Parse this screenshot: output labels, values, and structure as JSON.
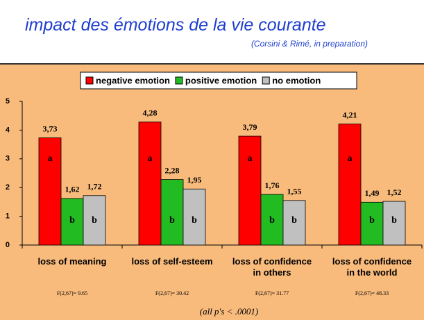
{
  "title": "impact des émotions de la vie courante",
  "subtitle": "(Corsini & Rimé, in preparation)",
  "chart_data": {
    "type": "bar",
    "categories": [
      "loss of meaning",
      "loss of self-esteem",
      "loss of confidence\nin others",
      "loss of confidence\nin the world"
    ],
    "series": [
      {
        "name": "negative emotion",
        "color": "#ff0000",
        "values": [
          3.73,
          4.28,
          3.79,
          4.21
        ],
        "value_labels": [
          "3,73",
          "4,28",
          "3,79",
          "4,21"
        ],
        "letters": [
          "a",
          "a",
          "a",
          "a"
        ]
      },
      {
        "name": "positive emotion",
        "color": "#22bb22",
        "values": [
          1.62,
          2.28,
          1.76,
          1.49
        ],
        "value_labels": [
          "1,62",
          "2,28",
          "1,76",
          "1,49"
        ],
        "letters": [
          "b",
          "b",
          "b",
          "b"
        ]
      },
      {
        "name": "no emotion",
        "color": "#c0c0c0",
        "values": [
          1.72,
          1.95,
          1.55,
          1.52
        ],
        "value_labels": [
          "1,72",
          "1,95",
          "1,55",
          "1,52"
        ],
        "letters": [
          "b",
          "b",
          "b",
          "b"
        ]
      }
    ],
    "ylim": [
      0,
      5
    ],
    "yticks": [
      0,
      1,
      2,
      3,
      4,
      5
    ],
    "legend": "top",
    "stats": [
      "F(2,67)= 9.65",
      "F(2,67)= 30.42",
      "F(2,67)= 31.77",
      "F(2,67)= 48.33"
    ],
    "footnote": "(all p's < .0001)"
  }
}
